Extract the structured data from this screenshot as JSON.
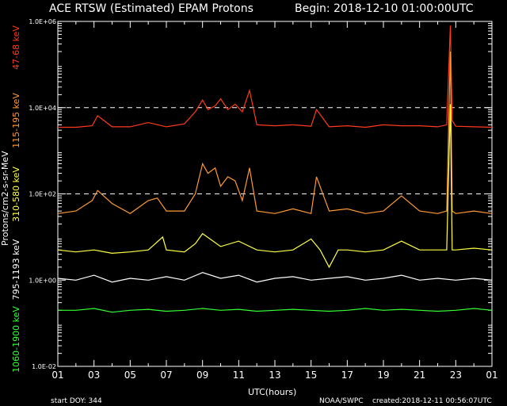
{
  "header": {
    "title": "ACE RTSW (Estimated) EPAM Protons",
    "begin": "Begin: 2018-12-10 01:00:00UTC"
  },
  "footer": {
    "start_doy": "start DOY:  344",
    "credit": "NOAA/SWPC",
    "created": "created:2018-12-11 00:56:07UTC"
  },
  "chart_data": {
    "type": "line",
    "title": "ACE RTSW (Estimated) EPAM Protons",
    "xlabel": "UTC(hours)",
    "ylabel": "Protons/cm2-s-sr-MeV",
    "yscale": "log",
    "ylim": [
      0.01,
      1000000
    ],
    "xlim": [
      1,
      25
    ],
    "x_ticks": [
      "01",
      "03",
      "05",
      "07",
      "09",
      "11",
      "13",
      "15",
      "17",
      "19",
      "21",
      "23",
      "01"
    ],
    "y_ticks": [
      "1.0E-02",
      "1.0E+00",
      "1.0E+02",
      "1.0E+04",
      "1.0E+06"
    ],
    "reference_lines": [
      10000,
      100
    ],
    "series": [
      {
        "name": "47-68 keV",
        "color": "#ff3a1a",
        "x": [
          1,
          2,
          2.9,
          3.2,
          4,
          5,
          6,
          7,
          8,
          8.6,
          9,
          9.3,
          9.7,
          10,
          10.4,
          10.8,
          11.2,
          11.6,
          12,
          13,
          14,
          15,
          15.3,
          16,
          17,
          18,
          19,
          20,
          21,
          22,
          22.5,
          22.7,
          22.8,
          23,
          24,
          25
        ],
        "y": [
          3500,
          3500,
          3800,
          6500,
          3600,
          3600,
          4500,
          3600,
          4200,
          8000,
          15000,
          9000,
          11000,
          16000,
          9000,
          12000,
          8000,
          25000,
          4000,
          3800,
          4000,
          3700,
          9000,
          3600,
          3800,
          3500,
          4000,
          3800,
          3800,
          3600,
          4000,
          800000,
          5000,
          3700,
          3600,
          3500
        ]
      },
      {
        "name": "115-195 keV",
        "color": "#ff9933",
        "x": [
          1,
          2,
          2.9,
          3.2,
          4,
          5,
          6,
          6.5,
          7,
          8,
          8.6,
          9,
          9.3,
          9.7,
          10,
          10.4,
          10.8,
          11.2,
          11.6,
          12,
          13,
          14,
          15,
          15.3,
          16,
          17,
          18,
          19,
          20,
          21,
          22,
          22.5,
          22.7,
          22.8,
          23,
          24,
          25
        ],
        "y": [
          35,
          40,
          70,
          120,
          60,
          35,
          70,
          80,
          40,
          40,
          100,
          500,
          300,
          400,
          150,
          250,
          200,
          70,
          400,
          40,
          35,
          45,
          35,
          250,
          40,
          45,
          35,
          40,
          90,
          40,
          35,
          40,
          200000,
          40,
          35,
          40,
          35
        ]
      },
      {
        "name": "310-580 keV",
        "color": "#ffff44",
        "x": [
          1,
          2,
          3,
          4,
          5,
          6,
          6.8,
          7,
          8,
          8.6,
          9,
          10,
          11,
          12,
          13,
          14,
          15,
          15.5,
          16,
          16.5,
          17,
          18,
          19,
          20,
          21,
          22,
          22.5,
          22.7,
          22.8,
          23,
          24,
          25
        ],
        "y": [
          5,
          4.5,
          5,
          4.2,
          4.5,
          5,
          10,
          5,
          4.5,
          7,
          12,
          6,
          8,
          5,
          4.5,
          5,
          9,
          5,
          2,
          5,
          5,
          4.5,
          5,
          8,
          5,
          5,
          5,
          12000,
          5,
          5,
          5.5,
          5
        ]
      },
      {
        "name": "795-1193 keV",
        "color": "#ffffff",
        "x": [
          1,
          2,
          3,
          4,
          5,
          6,
          7,
          8,
          9,
          10,
          11,
          12,
          13,
          14,
          15,
          16,
          17,
          18,
          19,
          20,
          21,
          22,
          23,
          24,
          25
        ],
        "y": [
          1.1,
          1.0,
          1.3,
          0.9,
          1.1,
          1.0,
          1.2,
          1.0,
          1.5,
          1.1,
          1.3,
          0.9,
          1.1,
          1.2,
          1.0,
          1.1,
          1.2,
          1.0,
          1.1,
          1.3,
          1.0,
          1.1,
          1.0,
          1.1,
          1.0
        ]
      },
      {
        "name": "1060-1900 keV",
        "color": "#33ff33",
        "x": [
          1,
          2,
          3,
          4,
          5,
          6,
          7,
          8,
          9,
          10,
          11,
          12,
          13,
          14,
          15,
          16,
          17,
          18,
          19,
          20,
          21,
          22,
          23,
          24,
          25
        ],
        "y": [
          0.2,
          0.2,
          0.22,
          0.18,
          0.2,
          0.21,
          0.19,
          0.2,
          0.22,
          0.2,
          0.21,
          0.19,
          0.2,
          0.21,
          0.2,
          0.19,
          0.2,
          0.22,
          0.2,
          0.21,
          0.2,
          0.19,
          0.2,
          0.22,
          0.2
        ]
      }
    ]
  }
}
